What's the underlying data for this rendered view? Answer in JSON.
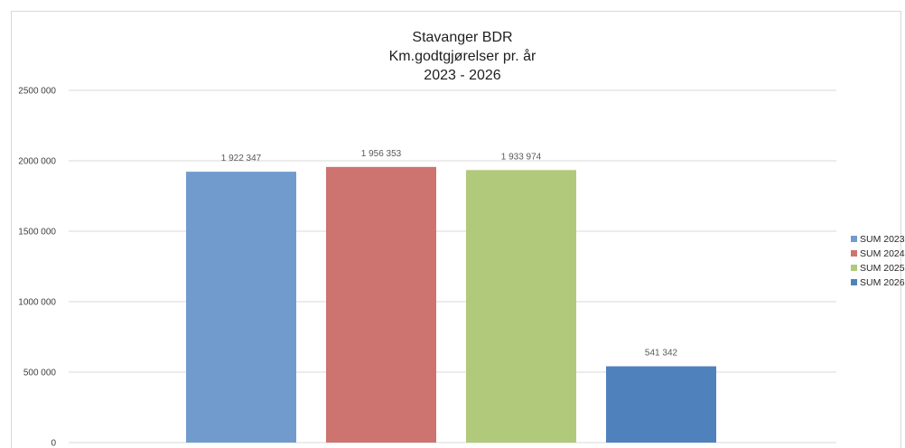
{
  "chart_data": {
    "type": "bar",
    "title_lines": [
      "Stavanger BDR",
      "Km.godtgjørelser pr. år",
      "2023 - 2026"
    ],
    "categories": [
      ""
    ],
    "series": [
      {
        "name": "SUM 2023",
        "values": [
          1922347
        ],
        "label": "1 922 347",
        "color": "#729bcd"
      },
      {
        "name": "SUM 2024",
        "values": [
          1956353
        ],
        "label": "1 956 353",
        "color": "#cd7370"
      },
      {
        "name": "SUM 2025",
        "values": [
          1933974
        ],
        "label": "1 933 974",
        "color": "#b0c97a"
      },
      {
        "name": "SUM 2026",
        "values": [
          541342
        ],
        "label": "541 342",
        "color": "#4f81bd"
      }
    ],
    "y_ticks": [
      0,
      500000,
      1000000,
      1500000,
      2000000,
      2500000
    ],
    "y_tick_labels": [
      "0",
      "500 000",
      "1000 000",
      "1500 000",
      "2000 000",
      "2500 000"
    ],
    "ylim": [
      0,
      2500000
    ],
    "grid": true,
    "legend_position": "right",
    "xlabel": "",
    "ylabel": ""
  }
}
